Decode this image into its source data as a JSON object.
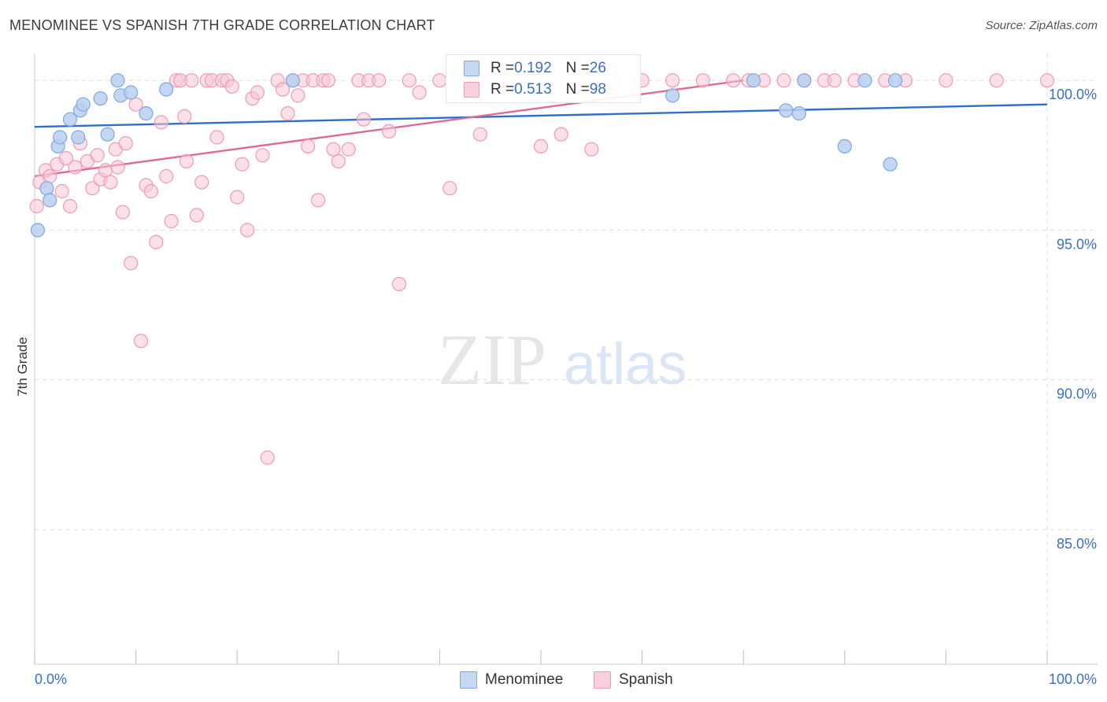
{
  "header": {
    "title": "MENOMINEE VS SPANISH 7TH GRADE CORRELATION CHART",
    "source": "Source: ZipAtlas.com"
  },
  "watermark": {
    "zip": "ZIP",
    "atlas": "atlas"
  },
  "legend": {
    "rows": [
      {
        "name": "Menominee",
        "r_label": "R = ",
        "r_value": "0.192",
        "n_label": "N = ",
        "n_value": "26"
      },
      {
        "name": "Spanish",
        "r_label": "R = ",
        "r_value": "0.513",
        "n_label": "N = ",
        "n_value": "98"
      }
    ]
  },
  "colors": {
    "menominee_fill": "#b8d0f0",
    "menominee_stroke": "#7fa8e0",
    "menominee_line": "#2e6fc9",
    "spanish_fill": "#f8c6d6",
    "spanish_stroke": "#ef9ab6",
    "spanish_line": "#e06a93",
    "tick_label": "#3b6fc4",
    "grid": "#dddddd"
  },
  "chart_data": {
    "type": "scatter",
    "title": "MENOMINEE VS SPANISH 7TH GRADE CORRELATION CHART",
    "xlabel": "",
    "ylabel": "7th Grade",
    "xlim": [
      0,
      100
    ],
    "ylim": [
      80.5,
      100.9
    ],
    "x_tick_labels": [
      "0.0%",
      "100.0%"
    ],
    "y_ticks": [
      85,
      90,
      95,
      100
    ],
    "y_tick_labels": [
      "85.0%",
      "90.0%",
      "95.0%",
      "100.0%"
    ],
    "grid": true,
    "legend_position": "bottom-center",
    "series": [
      {
        "name": "Menominee",
        "color": "#b8d0f0",
        "x": [
          0.3,
          1.2,
          1.5,
          2.3,
          2.5,
          3.5,
          4.3,
          4.5,
          4.8,
          6.5,
          7.2,
          8.2,
          8.5,
          9.5,
          11.0,
          13.0,
          25.5,
          63.0,
          71.0,
          74.2,
          75.5,
          76.0,
          80.0,
          82.0,
          84.5,
          85.0
        ],
        "y": [
          95.0,
          96.4,
          96.0,
          97.8,
          98.1,
          98.7,
          98.1,
          99.0,
          99.2,
          99.4,
          98.2,
          100.0,
          99.5,
          99.6,
          98.9,
          99.7,
          100.0,
          99.5,
          100.0,
          99.0,
          98.9,
          100.0,
          97.8,
          100.0,
          97.2,
          100.0
        ]
      },
      {
        "name": "Spanish",
        "color": "#f8c6d6",
        "x": [
          0.2,
          0.5,
          1.1,
          1.5,
          2.2,
          2.7,
          3.1,
          3.5,
          4.0,
          4.5,
          5.2,
          5.7,
          6.2,
          6.5,
          7.0,
          7.5,
          8.0,
          8.2,
          8.7,
          9.0,
          9.5,
          10.0,
          10.5,
          11.0,
          11.5,
          12.0,
          12.5,
          13.0,
          13.5,
          14.0,
          14.4,
          14.8,
          15.0,
          15.5,
          16.0,
          16.5,
          17.0,
          17.5,
          18.0,
          18.5,
          19.0,
          19.5,
          20.0,
          20.5,
          21.0,
          21.5,
          22.0,
          22.5,
          23.0,
          24.0,
          24.5,
          25.0,
          25.5,
          26.0,
          26.5,
          27.0,
          27.5,
          28.0,
          28.5,
          29.0,
          29.5,
          30.0,
          31.0,
          32.0,
          32.5,
          33.0,
          34.0,
          35.0,
          36.0,
          37.0,
          38.0,
          40.0,
          41.0,
          42.0,
          43.0,
          44.0,
          45.0,
          48.0,
          50.0,
          52.0,
          55.0,
          57.0,
          60.0,
          63.0,
          66.0,
          69.0,
          70.5,
          72.0,
          74.0,
          76.0,
          78.0,
          79.0,
          81.0,
          84.0,
          86.0,
          90.0,
          95.0,
          100.0
        ],
        "y": [
          95.8,
          96.6,
          97.0,
          96.8,
          97.2,
          96.3,
          97.4,
          95.8,
          97.1,
          97.9,
          97.3,
          96.4,
          97.5,
          96.7,
          97.0,
          96.6,
          97.7,
          97.1,
          95.6,
          97.9,
          93.9,
          99.2,
          91.3,
          96.5,
          96.3,
          94.6,
          98.6,
          96.8,
          95.3,
          100.0,
          100.0,
          98.8,
          97.3,
          100.0,
          95.5,
          96.6,
          100.0,
          100.0,
          98.1,
          100.0,
          100.0,
          99.8,
          96.1,
          97.2,
          95.0,
          99.4,
          99.6,
          97.5,
          87.4,
          100.0,
          99.7,
          98.9,
          100.0,
          99.5,
          100.0,
          97.8,
          100.0,
          96.0,
          100.0,
          100.0,
          97.7,
          97.3,
          97.7,
          100.0,
          98.7,
          100.0,
          100.0,
          98.3,
          93.2,
          100.0,
          99.6,
          100.0,
          96.4,
          100.0,
          100.0,
          98.2,
          100.0,
          100.0,
          97.8,
          98.2,
          97.7,
          100.0,
          100.0,
          100.0,
          100.0,
          100.0,
          100.0,
          100.0,
          100.0,
          100.0,
          100.0,
          100.0,
          100.0,
          100.0,
          100.0,
          100.0,
          100.0,
          100.0
        ]
      }
    ],
    "trendlines": [
      {
        "series": "Menominee",
        "x": [
          0,
          100
        ],
        "y": [
          98.45,
          99.2
        ]
      },
      {
        "series": "Spanish",
        "x": [
          0,
          70
        ],
        "y": [
          96.8,
          100.0
        ]
      }
    ]
  }
}
